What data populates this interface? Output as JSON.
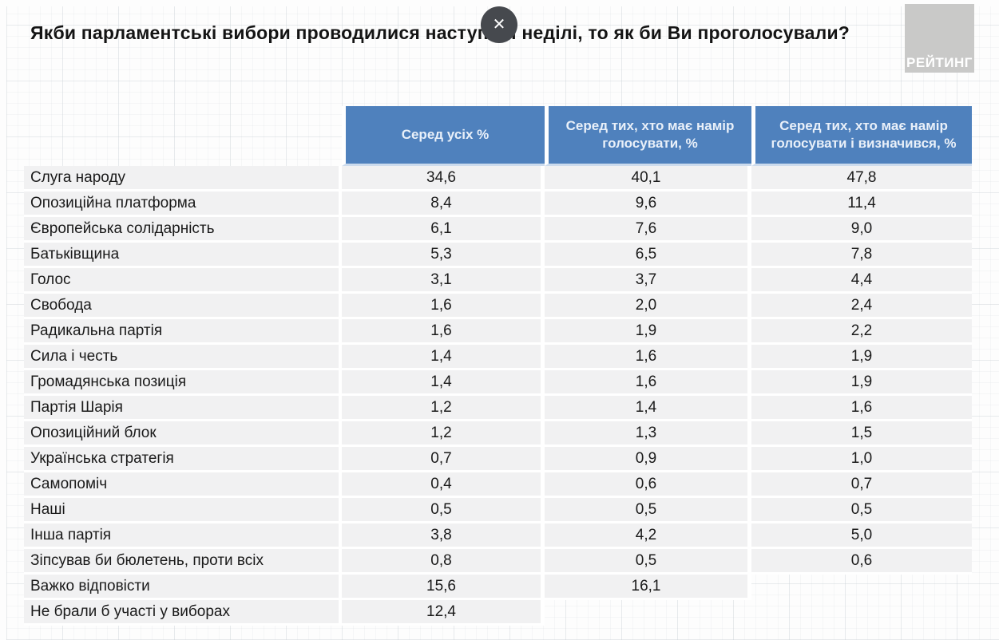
{
  "page": {
    "title": "Якби парламентські вибори проводилися наступної неділі, то як би Ви проголосували?",
    "close_glyph": "✕",
    "logo_text": "РЕЙТИНГ"
  },
  "colors": {
    "header_bg": "#4f81bd",
    "header_text": "#e9f0f9",
    "row_bg": "#f1f1f2",
    "body_text": "#1a1a1a",
    "logo_bg": "#c9c9c8",
    "close_bg": "#46494e",
    "header_underline": "#ccdbed"
  },
  "chart_data": {
    "type": "table",
    "title": "Якби парламентські вибори проводилися наступної неділі, то як би Ви проголосували?",
    "columns": [
      "Серед усіх %",
      "Серед тих, хто має намір голосувати, %",
      "Серед тих, хто має намір голосувати і визначився, %"
    ],
    "rows": [
      {
        "label": "Слуга народу",
        "values": [
          "34,6",
          "40,1",
          "47,8"
        ]
      },
      {
        "label": "Опозиційна платформа",
        "values": [
          "8,4",
          "9,6",
          "11,4"
        ]
      },
      {
        "label": "Європейська солідарність",
        "values": [
          "6,1",
          "7,6",
          "9,0"
        ]
      },
      {
        "label": "Батьківщина",
        "values": [
          "5,3",
          "6,5",
          "7,8"
        ]
      },
      {
        "label": "Голос",
        "values": [
          "3,1",
          "3,7",
          "4,4"
        ]
      },
      {
        "label": "Свобода",
        "values": [
          "1,6",
          "2,0",
          "2,4"
        ]
      },
      {
        "label": "Радикальна партія",
        "values": [
          "1,6",
          "1,9",
          "2,2"
        ]
      },
      {
        "label": "Сила і честь",
        "values": [
          "1,4",
          "1,6",
          "1,9"
        ]
      },
      {
        "label": "Громадянська позиція",
        "values": [
          "1,4",
          "1,6",
          "1,9"
        ]
      },
      {
        "label": "Партія Шарія",
        "values": [
          "1,2",
          "1,4",
          "1,6"
        ]
      },
      {
        "label": "Опозиційний блок",
        "values": [
          "1,2",
          "1,3",
          "1,5"
        ]
      },
      {
        "label": "Українська стратегія",
        "values": [
          "0,7",
          "0,9",
          "1,0"
        ]
      },
      {
        "label": "Самопоміч",
        "values": [
          "0,4",
          "0,6",
          "0,7"
        ]
      },
      {
        "label": "Наші",
        "values": [
          "0,5",
          "0,5",
          "0,5"
        ]
      },
      {
        "label": "Інша партія",
        "values": [
          "3,8",
          "4,2",
          "5,0"
        ]
      },
      {
        "label": "Зіпсував би бюлетень, проти всіх",
        "values": [
          "0,8",
          "0,5",
          "0,6"
        ]
      },
      {
        "label": "Важко відповісти",
        "values": [
          "15,6",
          "16,1",
          null
        ]
      },
      {
        "label": "Не брали б участі у виборах",
        "values": [
          "12,4",
          null,
          null
        ]
      }
    ]
  }
}
